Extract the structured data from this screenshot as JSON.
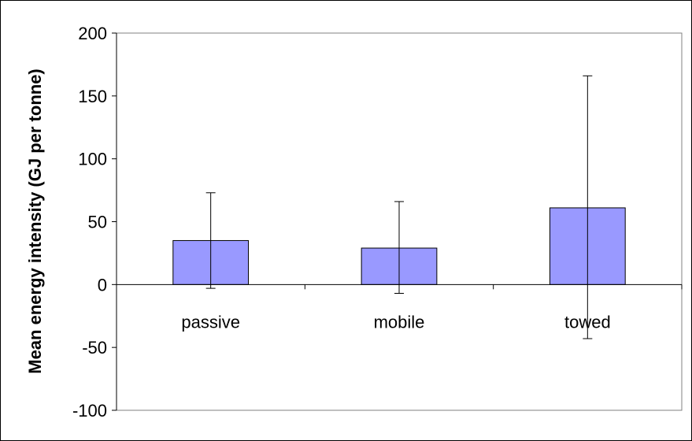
{
  "chart_data": {
    "type": "bar",
    "title": "",
    "xlabel": "",
    "ylabel": "Mean energy intensity (GJ per tonne)",
    "categories": [
      "passive",
      "mobile",
      "towed"
    ],
    "values": [
      35,
      29,
      61
    ],
    "error_bars": [
      {
        "low": -3,
        "high": 73
      },
      {
        "low": -7,
        "high": 66
      },
      {
        "low": -43,
        "high": 166
      }
    ],
    "ylim": [
      -100,
      200
    ],
    "yticks": [
      200,
      150,
      100,
      50,
      0,
      -50,
      -100
    ],
    "ytick_labels": [
      "200",
      "150",
      "100",
      "50",
      "0",
      "-50",
      "-100"
    ],
    "grid": false,
    "legend": "none",
    "colors": {
      "bar_fill": "#9999ff",
      "bar_stroke": "#000000",
      "axis": "#000000",
      "plot_border": "#808080"
    }
  }
}
